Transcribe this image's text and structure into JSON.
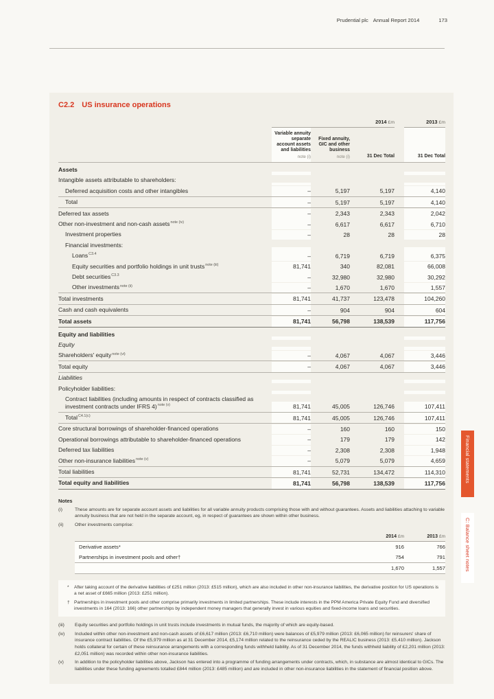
{
  "page": {
    "header": {
      "brand": "Prudential plc",
      "report": "Annual Report 2014",
      "page_number": "173"
    }
  },
  "section_title": {
    "code": "C2.2",
    "text": "US insurance operations"
  },
  "colors": {
    "accent_red": "#d8361f",
    "tab_orange": "#e4572e",
    "box_bg": "#f1efe8",
    "column_highlight": "#fcfcf9"
  },
  "table": {
    "year_cols": [
      {
        "year": "2014",
        "unit": "£m"
      },
      {
        "year": "2013",
        "unit": "£m"
      }
    ],
    "columns": [
      {
        "header": "Variable annuity separate account assets and liabilities",
        "note": "note (i)"
      },
      {
        "header": "Fixed annuity, GIC and other business",
        "note": "note (i)"
      },
      {
        "header": "31 Dec Total",
        "note": ""
      },
      {
        "header": "31 Dec Total",
        "note": ""
      }
    ],
    "rows": [
      {
        "label": "Assets",
        "bold": true,
        "sect": true,
        "values": null
      },
      {
        "label": "Intangible assets attributable to shareholders:",
        "values": null
      },
      {
        "label": "Deferred acquisition costs and other intangibles",
        "indent": 1,
        "values": [
          "–",
          "5,197",
          "5,197",
          "4,140"
        ]
      },
      {
        "label": "Total",
        "indent": 1,
        "rt": true,
        "values": [
          "–",
          "5,197",
          "5,197",
          "4,140"
        ]
      },
      {
        "label": "Deferred tax assets",
        "rt": true,
        "values": [
          "–",
          "2,343",
          "2,343",
          "2,042"
        ]
      },
      {
        "label": "Other non-investment and non-cash assets",
        "sup": "note (iv)",
        "values": [
          "–",
          "6,617",
          "6,617",
          "6,710"
        ]
      },
      {
        "label": "Investment properties",
        "indent": 1,
        "values": [
          "–",
          "28",
          "28",
          "28"
        ]
      },
      {
        "label": "Financial investments:",
        "indent": 1,
        "values": null
      },
      {
        "label": "Loans",
        "sup": "C3.4",
        "indent": 2,
        "values": [
          "–",
          "6,719",
          "6,719",
          "6,375"
        ]
      },
      {
        "label": "Equity securities and portfolio holdings in unit trusts",
        "sup": "note (iii)",
        "indent": 2,
        "values": [
          "81,741",
          "340",
          "82,081",
          "66,008"
        ]
      },
      {
        "label": "Debt securities",
        "sup": "C3.3",
        "indent": 2,
        "values": [
          "–",
          "32,980",
          "32,980",
          "30,292"
        ]
      },
      {
        "label": "Other investments",
        "sup": "note (ii)",
        "indent": 2,
        "values": [
          "–",
          "1,670",
          "1,670",
          "1,557"
        ]
      },
      {
        "label": "Total investments",
        "rt": true,
        "values": [
          "81,741",
          "41,737",
          "123,478",
          "104,260"
        ]
      },
      {
        "label": "Cash and cash equivalents",
        "rt": true,
        "values": [
          "–",
          "904",
          "904",
          "604"
        ]
      },
      {
        "label": "Total assets",
        "bold": true,
        "rt": true,
        "values": [
          "81,741",
          "56,798",
          "138,539",
          "117,756"
        ]
      },
      {
        "label": "Equity and liabilities",
        "bold": true,
        "sect": true,
        "rt": "strong",
        "values": null
      },
      {
        "label": "Equity",
        "italic": true,
        "values": null
      },
      {
        "label": "Shareholders' equity",
        "sup": "note (vi)",
        "values": [
          "–",
          "4,067",
          "4,067",
          "3,446"
        ]
      },
      {
        "label": "Total equity",
        "rt": true,
        "values": [
          "–",
          "4,067",
          "4,067",
          "3,446"
        ]
      },
      {
        "label": "Liabilities",
        "italic": true,
        "rt": true,
        "values": null
      },
      {
        "label": "Policyholder liabilities:",
        "values": null
      },
      {
        "label": "Contract liabilities (including amounts in respect of contracts classified as investment contracts under IFRS 4)",
        "sup": "note (v)",
        "indent": 1,
        "values": [
          "81,741",
          "45,005",
          "126,746",
          "107,411"
        ]
      },
      {
        "label": "Total",
        "sup": "C4.1(c)",
        "indent": 1,
        "rt": true,
        "values": [
          "81,741",
          "45,005",
          "126,746",
          "107,411"
        ]
      },
      {
        "label": "Core structural borrowings of shareholder-financed operations",
        "rt": true,
        "values": [
          "–",
          "160",
          "160",
          "150"
        ]
      },
      {
        "label": "Operational borrowings attributable to shareholder-financed operations",
        "values": [
          "–",
          "179",
          "179",
          "142"
        ]
      },
      {
        "label": "Deferred tax liabilities",
        "values": [
          "–",
          "2,308",
          "2,308",
          "1,948"
        ]
      },
      {
        "label": "Other non-insurance liabilities",
        "sup": "note (v)",
        "values": [
          "–",
          "5,079",
          "5,079",
          "4,659"
        ]
      },
      {
        "label": "Total liabilities",
        "rt": true,
        "values": [
          "81,741",
          "52,731",
          "134,472",
          "114,310"
        ]
      },
      {
        "label": "Total equity and liabilities",
        "bold": true,
        "rt": true,
        "rb": "strong",
        "values": [
          "81,741",
          "56,798",
          "138,539",
          "117,756"
        ]
      }
    ]
  },
  "notes": {
    "heading": "Notes",
    "items": [
      {
        "num": "(i)",
        "text": "These amounts are for separate account assets and liabilities for all variable annuity products comprising those with and without guarantees. Assets and liabilities attaching to variable annuity business that are not held in the separate account, eg, in respect of guarantees are shown within other business."
      },
      {
        "num": "(ii)",
        "text": "Other investments comprise:"
      }
    ],
    "sub_table": {
      "year_cols": [
        {
          "year": "2014",
          "unit": "£m"
        },
        {
          "year": "2013",
          "unit": "£m"
        }
      ],
      "rows": [
        {
          "label": "Derivative assets*",
          "values": [
            "916",
            "766"
          ]
        },
        {
          "label": "Partnerships in investment pools and other†",
          "values": [
            "754",
            "791"
          ]
        },
        {
          "label": "",
          "values": [
            "1,670",
            "1,557"
          ]
        }
      ]
    },
    "footnotes": [
      {
        "sym": "*",
        "text": "After taking account of the derivative liabilities of £251 million (2013: £515 million), which are also included in other non-insurance liabilities, the derivative position for US operations is a net asset of £665 million (2013: £251 million)."
      },
      {
        "sym": "†",
        "text": "Partnerships in investment pools and other comprise primarily investments in limited partnerships. These include interests in the PPM America Private Equity Fund and diversified investments in 164 (2013: 166) other partnerships by independent money managers that generally invest in various equities and fixed-income loans and securities."
      }
    ],
    "items2": [
      {
        "num": "(iii)",
        "text": "Equity securities and portfolio holdings in unit trusts include investments in mutual funds, the majority of which are equity-based."
      },
      {
        "num": "(iv)",
        "text": "Included within other non-investment and non-cash assets of £6,617 million (2013: £6,710 million) were balances of £5,979 million (2013: £6,065 million) for reinsurers' share of insurance contract liabilities. Of the £5,979 million as at 31 December 2014, £5,174 million related to the reinsurance ceded by the REALIC business (2013: £5,410 million). Jackson holds collateral for certain of these reinsurance arrangements with a corresponding funds withheld liability. As of 31 December 2014, the funds withheld liability of £2,201 million (2013: £2,051 million) was recorded within other non-insurance liabilities."
      },
      {
        "num": "(v)",
        "text": "In addition to the policyholder liabilities above, Jackson has entered into a programme of funding arrangements under contracts, which, in substance are almost identical to GICs. The liabilities under these funding agreements totalled £844 million (2013: £485 million) and are included in other non-insurance liabilities in the statement of financial position above."
      }
    ]
  },
  "sidebar": {
    "tabs": [
      {
        "label": "Financial statements",
        "bg": "#e4572e",
        "fg": "#ffffff"
      },
      {
        "label": "C: Balance sheet notes",
        "bg": "#ffffff",
        "fg": "#d8361f"
      }
    ]
  }
}
